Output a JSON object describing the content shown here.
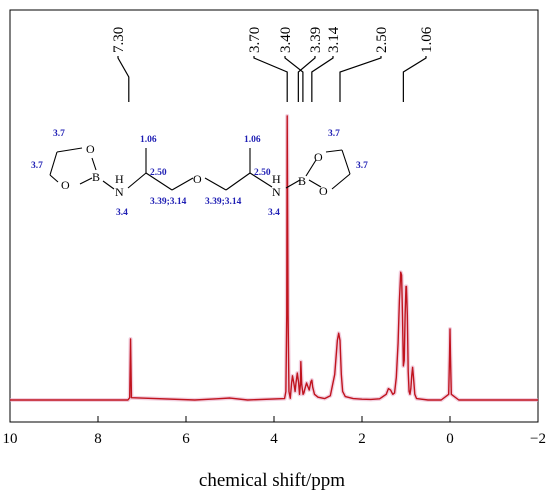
{
  "chart_data": {
    "type": "line",
    "title": "",
    "xlabel": "chemical shift/ppm",
    "ylabel": "",
    "xlim": [
      10,
      -2
    ],
    "x_reversed": true,
    "xticks": [
      10,
      8,
      6,
      4,
      2,
      0,
      -2
    ],
    "xtick_labels": [
      "10",
      "8",
      "6",
      "4",
      "2",
      "0",
      "−2"
    ],
    "grid": false,
    "legend": "none",
    "line_color": "#c0141e",
    "series": [
      {
        "x": [
          10.0,
          7.32,
          7.28,
          7.26,
          7.24,
          5.8,
          5.3,
          5.0,
          4.6,
          3.76,
          3.73,
          3.71,
          3.7,
          3.68,
          3.66,
          3.63,
          3.6,
          3.58,
          3.55,
          3.52,
          3.5,
          3.47,
          3.44,
          3.42,
          3.4,
          3.39,
          3.37,
          3.34,
          3.32,
          3.3,
          3.26,
          3.2,
          3.16,
          3.14,
          3.12,
          3.08,
          3.0,
          2.85,
          2.72,
          2.62,
          2.56,
          2.53,
          2.5,
          2.47,
          2.44,
          2.38,
          2.2,
          2.0,
          1.8,
          1.6,
          1.45,
          1.4,
          1.35,
          1.3,
          1.26,
          1.22,
          1.18,
          1.15,
          1.12,
          1.1,
          1.08,
          1.06,
          1.04,
          1.02,
          1.0,
          0.99,
          0.97,
          0.95,
          0.93,
          0.91,
          0.89,
          0.87,
          0.85,
          0.83,
          0.8,
          0.76,
          0.5,
          0.2,
          0.03,
          0.01,
          0.0,
          -0.01,
          -0.03,
          -0.2,
          -2.0
        ],
        "y": [
          0.0,
          0.0,
          0.8,
          21.5,
          0.8,
          0.0,
          0.4,
          0.7,
          0.0,
          0.5,
          3.0,
          30.0,
          100.0,
          30.0,
          3.0,
          0.6,
          6.0,
          8.5,
          6.0,
          3.0,
          6.0,
          9.5,
          6.0,
          2.0,
          5.5,
          13.5,
          5.5,
          2.0,
          2.5,
          3.8,
          6.0,
          3.5,
          6.5,
          7.0,
          4.5,
          2.0,
          1.0,
          0.5,
          1.5,
          9.0,
          21.0,
          23.5,
          21.0,
          9.0,
          3.0,
          1.2,
          0.5,
          0.3,
          0.2,
          0.4,
          2.0,
          4.0,
          3.5,
          2.0,
          2.5,
          8.0,
          20.0,
          35.0,
          45.0,
          44.0,
          30.0,
          12.0,
          14.0,
          30.0,
          40.0,
          40.0,
          30.0,
          10.0,
          3.0,
          2.0,
          4.0,
          8.5,
          11.5,
          8.0,
          2.0,
          0.5,
          0.0,
          0.0,
          2.0,
          16.0,
          25.0,
          16.0,
          2.0,
          0.0,
          0.0
        ]
      }
    ],
    "peak_labels": [
      "7.30",
      "3.70",
      "3.40",
      "3.39",
      "3.14",
      "2.50",
      "1.06"
    ],
    "annotation_shifts": [
      7.3,
      3.7,
      3.4,
      3.39,
      3.14,
      2.5,
      1.06
    ]
  },
  "molecule": {
    "atoms": {
      "O": "O",
      "B": "B",
      "N": "N",
      "H": "H"
    },
    "shift_labels": {
      "ring_ch2_top_left": "3.7",
      "ring_ch2_bottom_left": "3.7",
      "nh_left": "3.4",
      "ch3_left": "1.06",
      "ch_left": "2.50",
      "ch2_left": "3.39;3.14",
      "ch2_right": "3.39;3.14",
      "ch3_right": "1.06",
      "ch_right": "2.50",
      "nh_right": "3.4",
      "ring_ch2_top_right": "3.7",
      "ring_ch2_bottom_right": "3.7"
    }
  }
}
